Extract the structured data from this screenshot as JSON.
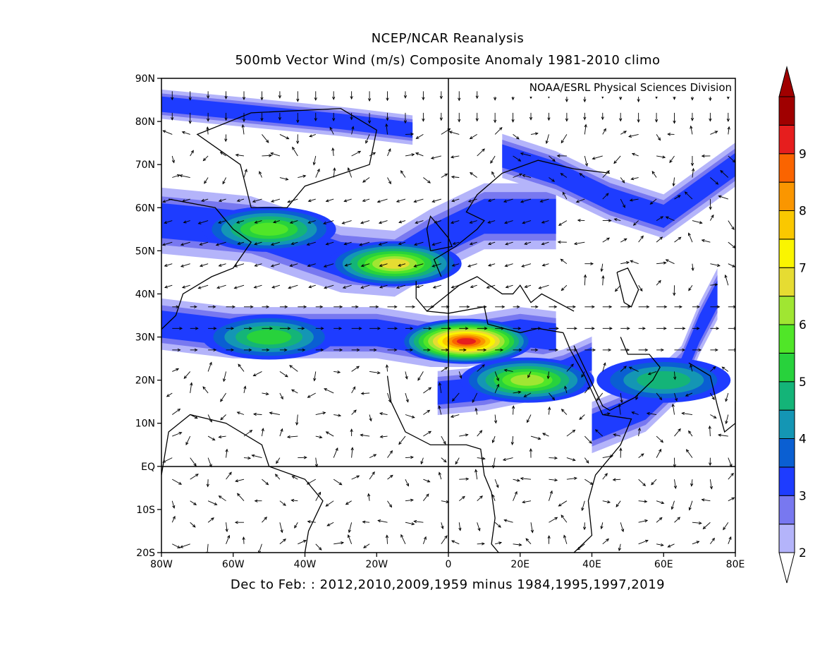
{
  "title": "NCEP/NCAR Reanalysis",
  "subtitle": "500mb Vector Wind (m/s) Composite Anomaly 1981-2010 climo",
  "credit": "NOAA/ESRL Physical Sciences Division",
  "footer": "Dec to Feb: : 2012,2010,2009,1959 minus 1984,1995,1997,2019",
  "x_ticks": [
    "80W",
    "60W",
    "40W",
    "20W",
    "0",
    "20E",
    "40E",
    "60E",
    "80E"
  ],
  "y_ticks": [
    "90N",
    "80N",
    "70N",
    "60N",
    "50N",
    "40N",
    "30N",
    "20N",
    "10N",
    "EQ",
    "10S",
    "20S"
  ],
  "colorbar": {
    "labels": [
      "2",
      "3",
      "4",
      "5",
      "6",
      "7",
      "8",
      "9"
    ],
    "colors": [
      "#b4b4fa",
      "#7878f0",
      "#1e3cff",
      "#0a5fd2",
      "#1496b4",
      "#14b478",
      "#28d23c",
      "#50e628",
      "#a0e632",
      "#e6dc32",
      "#faf500",
      "#fac800",
      "#fa9600",
      "#fa6400",
      "#e61e1e",
      "#a00000"
    ]
  },
  "chart_data": {
    "type": "map",
    "variable": "500mb Vector Wind (m/s) Composite Anomaly",
    "lon_range": [
      -80,
      80
    ],
    "lat_range": [
      -20,
      90
    ],
    "contour_levels": [
      2,
      2.5,
      3,
      3.5,
      4,
      4.5,
      5,
      5.5,
      6,
      6.5,
      7,
      7.5,
      8,
      8.5,
      9
    ],
    "features": [
      {
        "lon": -50,
        "lat": 55,
        "value": 5.5
      },
      {
        "lon": -15,
        "lat": 47,
        "value": 6.5
      },
      {
        "lon": 5,
        "lat": 29,
        "value": 9
      },
      {
        "lon": 22,
        "lat": 20,
        "value": 6
      },
      {
        "lon": -50,
        "lat": 30,
        "value": 5
      },
      {
        "lon": 60,
        "lat": 20,
        "value": 4.5
      }
    ]
  }
}
